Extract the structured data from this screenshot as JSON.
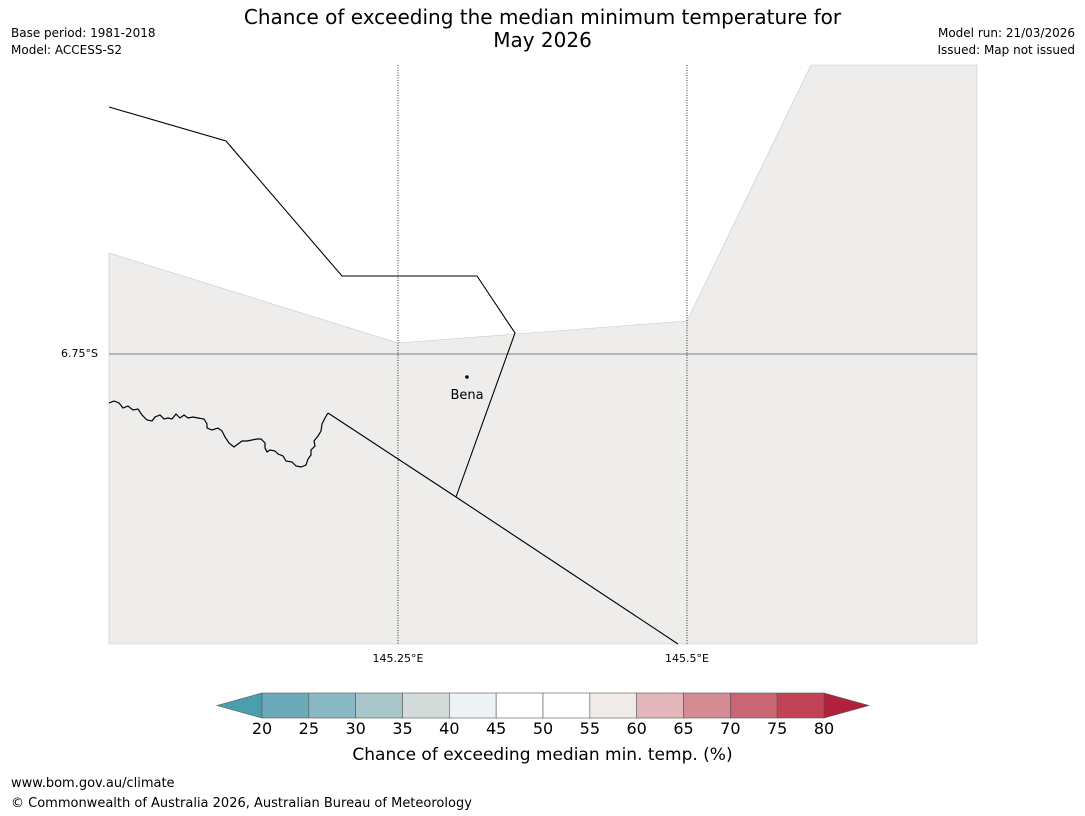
{
  "header": {
    "base_period": "Base period: 1981-2018",
    "model": "Model: ACCESS-S2",
    "title_line1": "Chance of exceeding the median minimum temperature for",
    "title_line2": "May 2026",
    "model_run": "Model run: 21/03/2026",
    "issued": "Issued: Map not issued"
  },
  "map": {
    "lat_label": "6.75°S",
    "lon_labels": [
      "145.25°E",
      "145.5°E"
    ],
    "place": "Bena",
    "fill_color": "#eeedeb"
  },
  "colorbar": {
    "ticks": [
      "20",
      "25",
      "30",
      "35",
      "40",
      "45",
      "50",
      "55",
      "60",
      "65",
      "70",
      "75",
      "80"
    ],
    "colors": [
      "#4a9fae",
      "#6aaab9",
      "#8bb8c5",
      "#a9c6ca",
      "#d3dbdb",
      "#edf3f4",
      "#ffffff",
      "#ffffff",
      "#f0ebe9",
      "#e3b6bb",
      "#d58b94",
      "#ca6673",
      "#c04455",
      "#b2213c"
    ],
    "title": "Chance of exceeding median min. temp. (%)"
  },
  "footer": {
    "url": "www.bom.gov.au/climate",
    "copyright": "© Commonwealth of Australia 2026, Australian Bureau of Meteorology"
  }
}
